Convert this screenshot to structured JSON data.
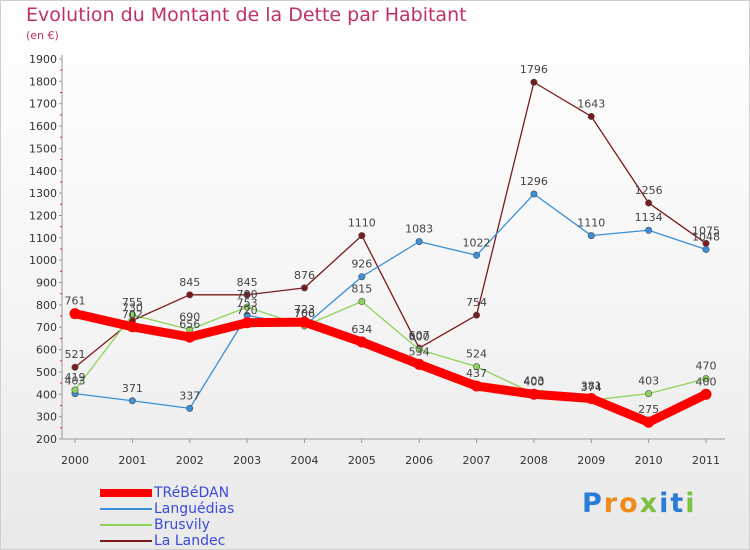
{
  "header": {
    "title": "Evolution du Montant de la Dette par Habitant",
    "subtitle": "(en €)"
  },
  "logo": {
    "letters": [
      "P",
      "r",
      "o",
      "x",
      "i",
      "t",
      "i"
    ],
    "colors": [
      "#2b7bd8",
      "#f08a1c",
      "#f08a1c",
      "#7bc142",
      "#2b7bd8",
      "#2b7bd8",
      "#7bc142"
    ]
  },
  "chart_data": {
    "type": "line",
    "x": [
      "2000",
      "2001",
      "2002",
      "2003",
      "2004",
      "2005",
      "2006",
      "2007",
      "2008",
      "2009",
      "2010",
      "2011"
    ],
    "ylim": [
      200,
      1900
    ],
    "yticks": [
      200,
      300,
      400,
      500,
      600,
      700,
      800,
      900,
      1000,
      1100,
      1200,
      1300,
      1400,
      1500,
      1600,
      1700,
      1800,
      1900
    ],
    "grid": false,
    "legend_position": "bottom-left",
    "series": [
      {
        "name": "TRéBéDAN",
        "color": "#ff0000",
        "values": [
          761,
          702,
          656,
          720,
          723,
          634,
          534,
          437,
          400,
          381,
          275,
          400
        ],
        "labels": [
          "761",
          "702",
          "656",
          "720",
          "723",
          "634",
          "534",
          "437",
          "400",
          "381",
          "275",
          "400"
        ]
      },
      {
        "name": "Languédias",
        "color": "#3b8fd9",
        "values": [
          403,
          371,
          337,
          753,
          706,
          926,
          1083,
          1022,
          1296,
          1110,
          1134,
          1048
        ],
        "labels": [
          "403",
          "371",
          "337",
          "753",
          "706",
          "926",
          "1083",
          "1022",
          "1296",
          "1110",
          "1134",
          "1048"
        ]
      },
      {
        "name": "Brusvily",
        "color": "#8fd35a",
        "values": [
          419,
          755,
          690,
          790,
          706,
          815,
          600,
          524,
          403,
          374,
          403,
          470
        ],
        "labels": [
          "419",
          "755",
          "690",
          "790",
          "706",
          "815",
          "600",
          "524",
          "403",
          "374",
          "403",
          "470"
        ]
      },
      {
        "name": "La Landec",
        "color": "#7a1a1a",
        "values": [
          521,
          730,
          845,
          845,
          876,
          1110,
          607,
          754,
          1796,
          1643,
          1256,
          1075
        ],
        "labels": [
          "521",
          "730",
          "845",
          "845",
          "876",
          "1110",
          "607",
          "754",
          "1796",
          "1643",
          "1256",
          "1075"
        ]
      }
    ]
  }
}
